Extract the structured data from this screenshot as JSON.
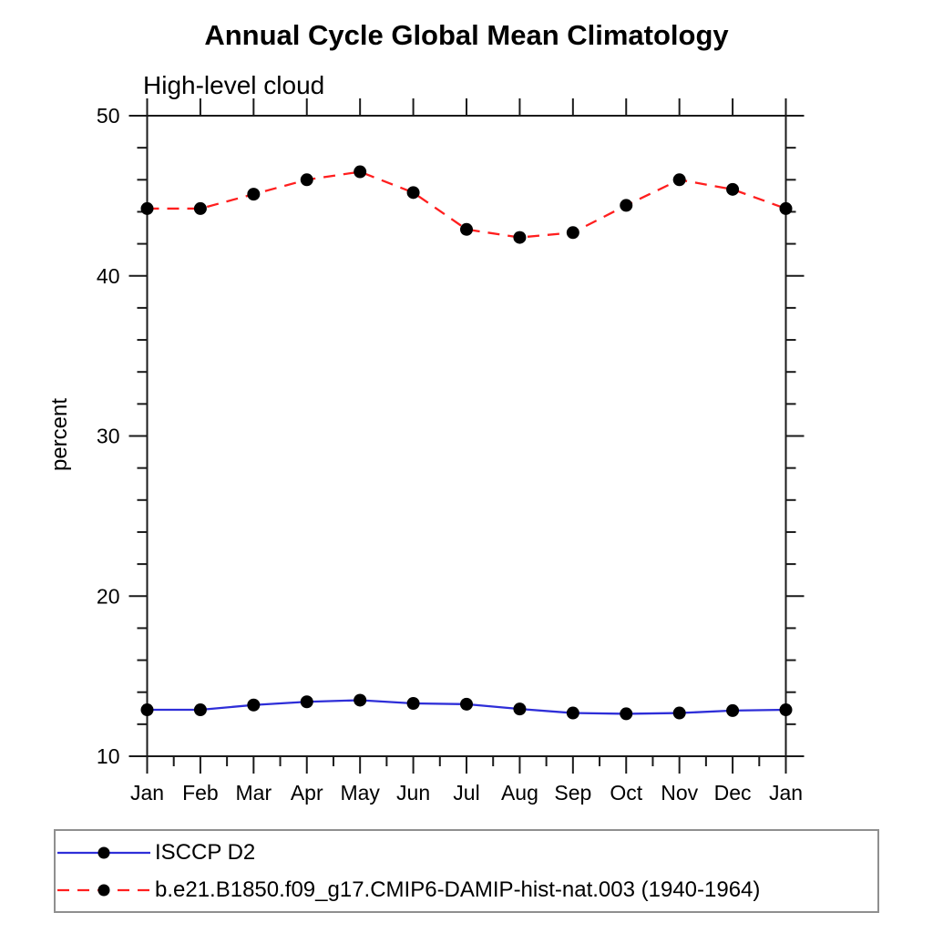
{
  "chart_data": {
    "type": "line",
    "title": "Annual Cycle Global Mean Climatology",
    "subtitle": "High-level cloud",
    "ylabel": "percent",
    "xlabel": "",
    "categories": [
      "Jan",
      "Feb",
      "Mar",
      "Apr",
      "May",
      "Jun",
      "Jul",
      "Aug",
      "Sep",
      "Oct",
      "Nov",
      "Dec",
      "Jan"
    ],
    "ylim": [
      10,
      50
    ],
    "ytick_major": [
      10,
      20,
      30,
      40,
      50
    ],
    "ytick_minor_step": 2,
    "grid": "off",
    "legend_position": "bottom-left",
    "frame_color": "#1a1a1a",
    "marker_color": "#000000",
    "series": [
      {
        "name": "ISCCP D2",
        "color": "#2e2ed8",
        "style": "solid",
        "values": [
          12.9,
          12.9,
          13.2,
          13.4,
          13.5,
          13.3,
          13.25,
          12.95,
          12.7,
          12.65,
          12.7,
          12.85,
          12.9
        ]
      },
      {
        "name": "b.e21.B1850.f09_g17.CMIP6-DAMIP-hist-nat.003 (1940-1964)",
        "color": "#ff1e1e",
        "style": "dashed",
        "values": [
          44.2,
          44.2,
          45.1,
          46.0,
          46.5,
          45.2,
          42.9,
          42.4,
          42.7,
          44.4,
          46.0,
          45.4,
          44.2
        ]
      }
    ]
  }
}
